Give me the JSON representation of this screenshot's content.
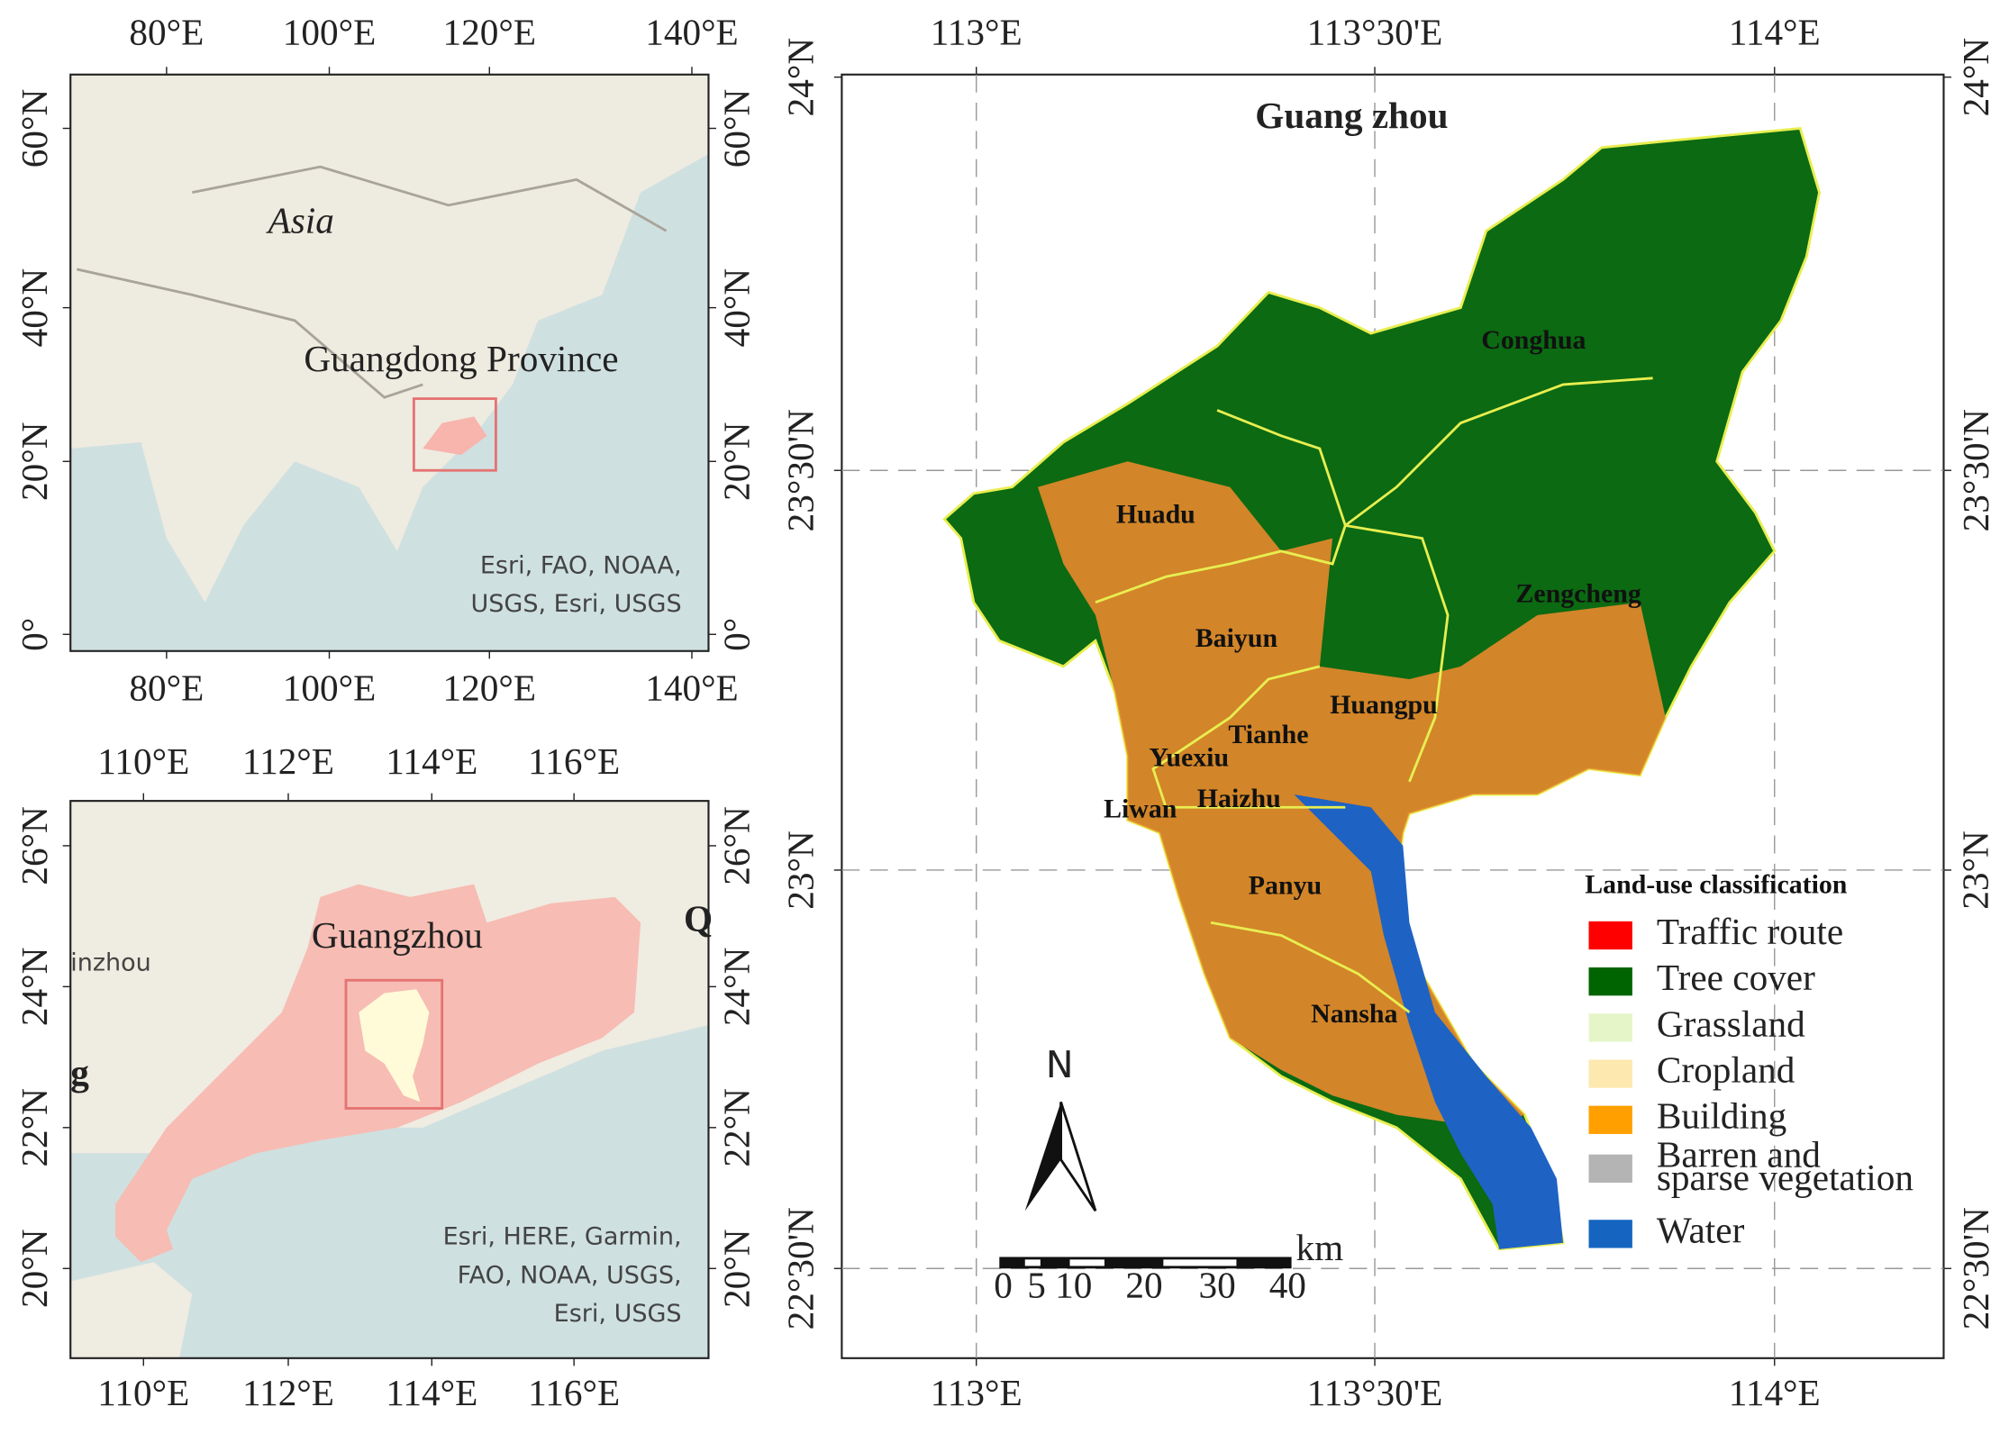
{
  "panel_a": {
    "x_ticks": [
      "80°E",
      "100°E",
      "120°E",
      "140°E"
    ],
    "y_ticks": [
      "60°N",
      "40°N",
      "20°N",
      "0°"
    ],
    "labels": [
      "Asia",
      "Guangdong Province"
    ],
    "attribution": [
      "Esri, FAO, NOAA,",
      "USGS, Esri, USGS"
    ]
  },
  "panel_b": {
    "x_ticks": [
      "110°E",
      "112°E",
      "114°E",
      "116°E"
    ],
    "y_ticks": [
      "26°N",
      "24°N",
      "22°N",
      "20°N"
    ],
    "labels": [
      "Guangzhou",
      "inzhou",
      "g",
      "Q"
    ],
    "attribution": [
      "Esri, HERE, Garmin,",
      "FAO, NOAA, USGS,",
      "Esri, USGS"
    ]
  },
  "panel_c": {
    "title": "Guang zhou",
    "x_ticks": [
      "113°E",
      "113°30'E",
      "114°E"
    ],
    "y_ticks": [
      "24°N",
      "23°30'N",
      "23°N",
      "22°30'N"
    ],
    "districts": [
      "Conghua",
      "Huadu",
      "Zengcheng",
      "Baiyun",
      "Huangpu",
      "Tianhe",
      "Yuexiu",
      "Liwan",
      "Haizhu",
      "Panyu",
      "Nansha"
    ],
    "legend": {
      "title": "Land-use classification",
      "items": [
        {
          "label": "Traffic route",
          "color": "#ff0000"
        },
        {
          "label": "Tree cover",
          "color": "#006400"
        },
        {
          "label": "Grassland",
          "color": "#e5f5c8"
        },
        {
          "label": "Cropland",
          "color": "#fde8b0"
        },
        {
          "label": "Building",
          "color": "#ffa000"
        },
        {
          "label": [
            "Barren and",
            "sparse vegetation"
          ],
          "color": "#b4b4b4"
        },
        {
          "label": "Water",
          "color": "#1565c0"
        }
      ]
    },
    "scale": {
      "unit": "km",
      "ticks": [
        "0",
        "5",
        "10",
        "20",
        "30",
        "40"
      ]
    },
    "north": "N"
  }
}
